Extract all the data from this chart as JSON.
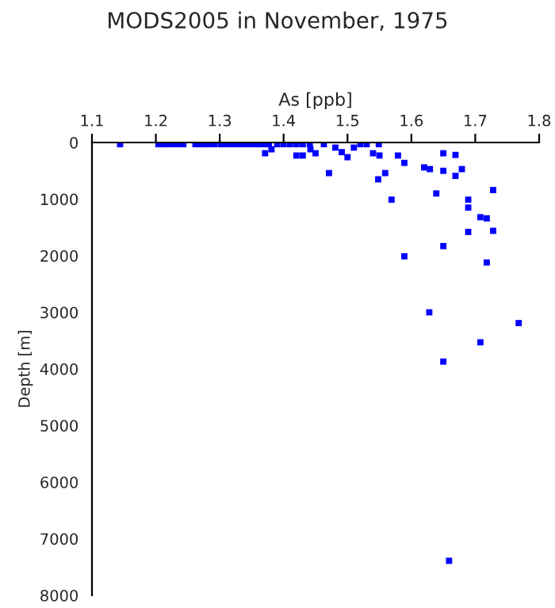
{
  "chart_data": {
    "type": "scatter",
    "title": "MODS2005 in November, 1975",
    "xlabel": "As [ppb]",
    "ylabel": "Depth [m]",
    "x": [
      1.144,
      1.204,
      1.211,
      1.218,
      1.226,
      1.234,
      1.243,
      1.262,
      1.269,
      1.276,
      1.284,
      1.292,
      1.302,
      1.311,
      1.32,
      1.328,
      1.336,
      1.345,
      1.353,
      1.361,
      1.369,
      1.377,
      1.39,
      1.4,
      1.41,
      1.42,
      1.43,
      1.441,
      1.463,
      1.52,
      1.53,
      1.549,
      1.371,
      1.381,
      1.42,
      1.43,
      1.442,
      1.45,
      1.471,
      1.481,
      1.491,
      1.5,
      1.51,
      1.54,
      1.55,
      1.548,
      1.559,
      1.569,
      1.579,
      1.589,
      1.62,
      1.629,
      1.639,
      1.65,
      1.65,
      1.669,
      1.669,
      1.679,
      1.689,
      1.689,
      1.708,
      1.718,
      1.728,
      1.689,
      1.728,
      1.65,
      1.589,
      1.718,
      1.628,
      1.768,
      1.708,
      1.65,
      1.659
    ],
    "values": [
      30,
      30,
      30,
      30,
      30,
      30,
      30,
      30,
      30,
      30,
      30,
      30,
      30,
      30,
      30,
      30,
      30,
      30,
      30,
      30,
      30,
      30,
      30,
      30,
      30,
      30,
      30,
      30,
      30,
      30,
      30,
      30,
      190,
      120,
      230,
      230,
      120,
      190,
      540,
      90,
      170,
      260,
      90,
      190,
      230,
      650,
      540,
      1010,
      230,
      360,
      440,
      470,
      900,
      190,
      500,
      220,
      590,
      470,
      1010,
      1150,
      1320,
      1340,
      840,
      1580,
      1560,
      1830,
      2010,
      2120,
      3000,
      3190,
      3530,
      3870,
      7390
    ],
    "color": "#0000ff",
    "marker": "square",
    "xlim": [
      1.1,
      1.8
    ],
    "xticks": [
      1.1,
      1.2,
      1.3,
      1.4,
      1.5,
      1.6,
      1.7,
      1.8
    ],
    "ylim": [
      8000,
      0
    ],
    "yticks": [
      0,
      1000,
      2000,
      3000,
      4000,
      5000,
      6000,
      7000,
      8000
    ],
    "grid": false,
    "legend": false
  }
}
